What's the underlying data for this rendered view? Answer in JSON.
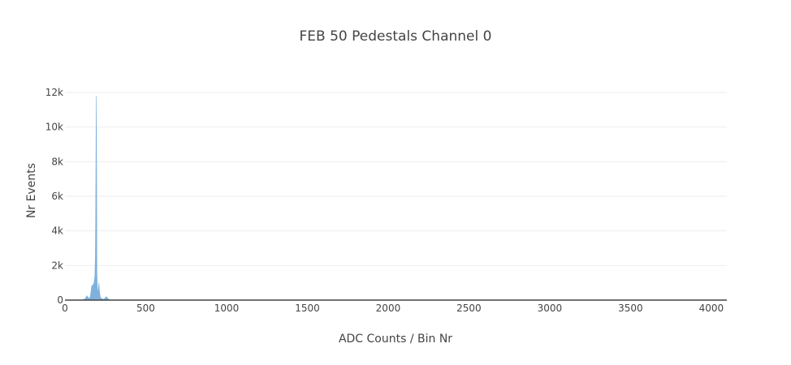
{
  "chart_data": {
    "type": "area",
    "title": "FEB 50 Pedestals Channel 0",
    "xlabel": "ADC Counts / Bin Nr",
    "ylabel": "Nr Events",
    "xlim": [
      0,
      4096
    ],
    "ylim": [
      0,
      12000
    ],
    "x_ticks": [
      0,
      500,
      1000,
      1500,
      2000,
      2500,
      3000,
      3500,
      4000
    ],
    "x_tick_labels": [
      "0",
      "500",
      "1000",
      "1500",
      "2000",
      "2500",
      "3000",
      "3500",
      "4000"
    ],
    "y_ticks": [
      0,
      2000,
      4000,
      6000,
      8000,
      10000,
      12000
    ],
    "y_tick_labels": [
      "0",
      "2k",
      "4k",
      "6k",
      "8k",
      "10k",
      "12k"
    ],
    "grid": "horizontal",
    "fill_color": "#7fb1dc",
    "series": [
      {
        "x": [
          100,
          120,
          130,
          135,
          140,
          145,
          150,
          155,
          160,
          165,
          170,
          175,
          180,
          185,
          188,
          190,
          192,
          194,
          195,
          196,
          197,
          198,
          200,
          202,
          205,
          208,
          210,
          212,
          215,
          218,
          220,
          225,
          230,
          235,
          240,
          245,
          250,
          255,
          260,
          265,
          270,
          280,
          300
        ],
        "values": [
          0,
          50,
          150,
          250,
          200,
          120,
          100,
          150,
          400,
          800,
          850,
          900,
          1000,
          1400,
          2500,
          5000,
          9000,
          11800,
          10000,
          7000,
          3500,
          1500,
          800,
          600,
          400,
          800,
          1000,
          700,
          400,
          200,
          150,
          100,
          80,
          60,
          50,
          80,
          150,
          200,
          150,
          100,
          50,
          10,
          0
        ]
      }
    ]
  }
}
